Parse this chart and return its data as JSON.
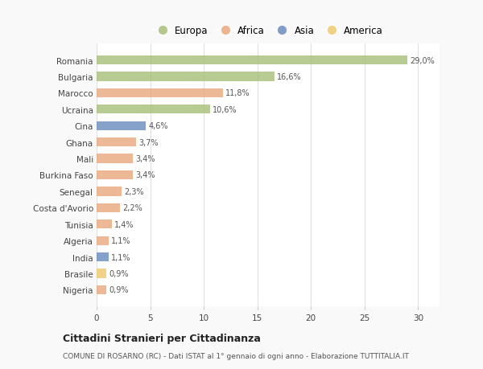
{
  "countries": [
    "Romania",
    "Bulgaria",
    "Marocco",
    "Ucraina",
    "Cina",
    "Ghana",
    "Mali",
    "Burkina Faso",
    "Senegal",
    "Costa d'Avorio",
    "Tunisia",
    "Algeria",
    "India",
    "Brasile",
    "Nigeria"
  ],
  "values": [
    29.0,
    16.6,
    11.8,
    10.6,
    4.6,
    3.7,
    3.4,
    3.4,
    2.3,
    2.2,
    1.4,
    1.1,
    1.1,
    0.9,
    0.9
  ],
  "labels": [
    "29,0%",
    "16,6%",
    "11,8%",
    "10,6%",
    "4,6%",
    "3,7%",
    "3,4%",
    "3,4%",
    "2,3%",
    "2,2%",
    "1,4%",
    "1,1%",
    "1,1%",
    "0,9%",
    "0,9%"
  ],
  "colors": [
    "#a8c07a",
    "#a8c07a",
    "#e8a97e",
    "#a8c07a",
    "#6b8cbf",
    "#e8a97e",
    "#e8a97e",
    "#e8a97e",
    "#e8a97e",
    "#e8a97e",
    "#e8a97e",
    "#e8a97e",
    "#6b8cbf",
    "#f0c96e",
    "#e8a97e"
  ],
  "legend_labels": [
    "Europa",
    "Africa",
    "Asia",
    "America"
  ],
  "legend_colors": [
    "#a8c07a",
    "#e8a97e",
    "#6b8cbf",
    "#f0c96e"
  ],
  "xlim": [
    0,
    32
  ],
  "xticks": [
    0,
    5,
    10,
    15,
    20,
    25,
    30
  ],
  "title": "Cittadini Stranieri per Cittadinanza",
  "subtitle": "COMUNE DI ROSARNO (RC) - Dati ISTAT al 1° gennaio di ogni anno - Elaborazione TUTTITALIA.IT",
  "background_color": "#f9f9f9",
  "bar_background": "#ffffff",
  "grid_color": "#e0e0e0"
}
